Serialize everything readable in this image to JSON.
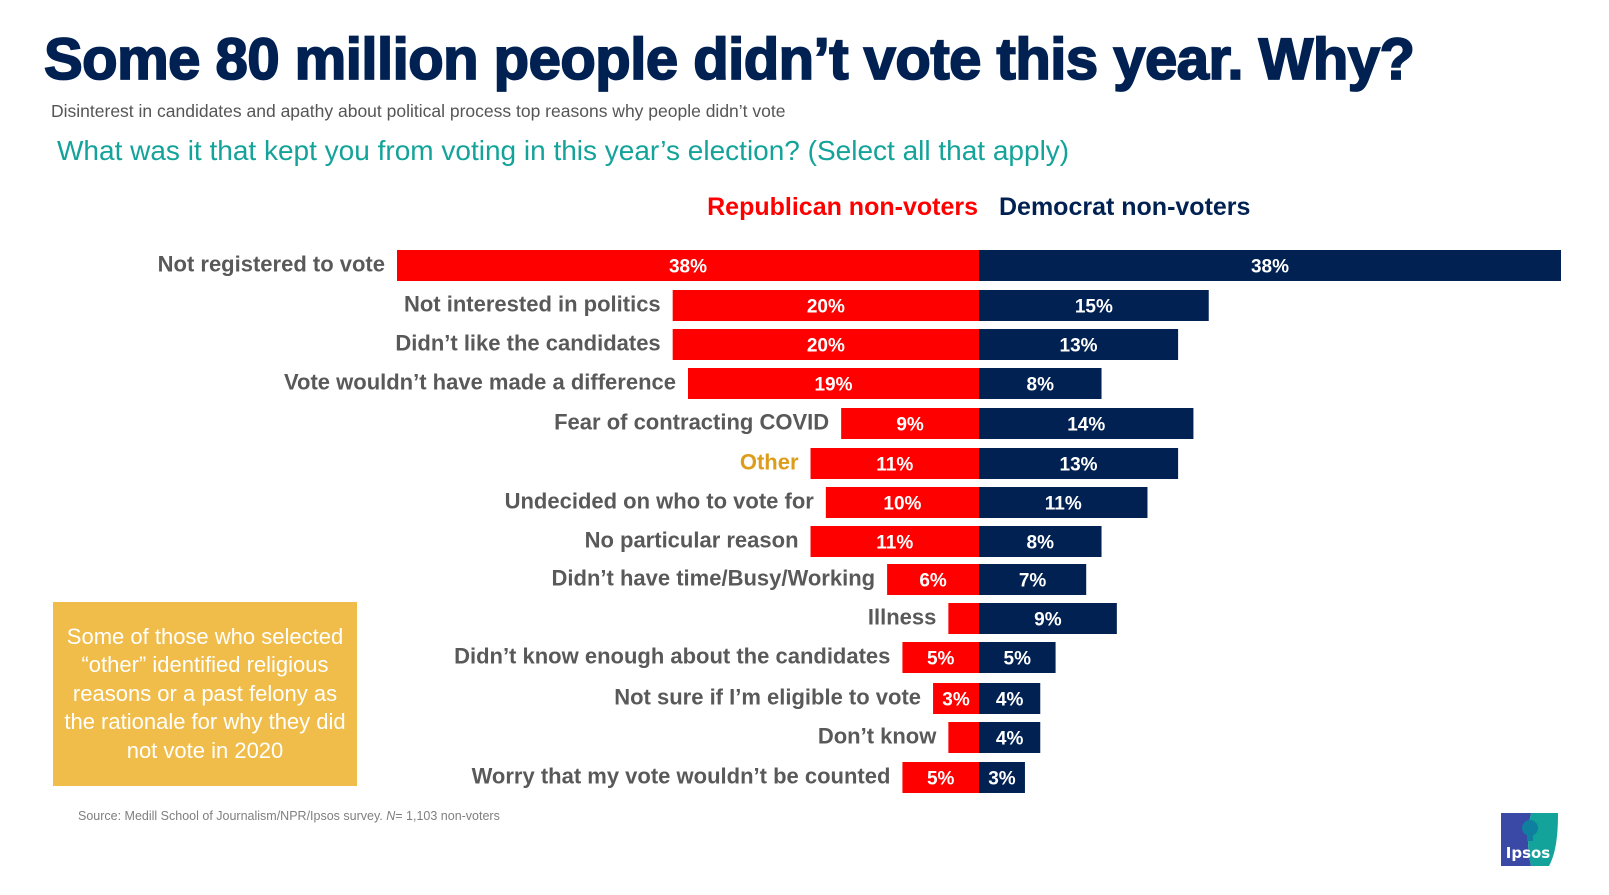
{
  "header": {
    "title": "Some 80 million people didn’t vote this year. Why?",
    "subtitle": "Disinterest in candidates and apathy about political process top reasons why people didn’t vote",
    "question": "What was it that kept you from voting in this year’s election? (Select all that apply)"
  },
  "colors": {
    "republican": "#ff0000",
    "democrat": "#002152",
    "label_default": "#595959",
    "label_highlight": "#dd9d1b",
    "note_bg": "#f0bd4a",
    "question": "#13a39a"
  },
  "chart_data": {
    "type": "bar",
    "orientation": "horizontal-diverging",
    "title": "What was it that kept you from voting in this year’s election? (Select all that apply)",
    "units": "%",
    "xlim": [
      0,
      38
    ],
    "legend": "top",
    "categories": [
      "Not registered to vote",
      "Not interested in politics",
      "Didn’t like the candidates",
      "Vote wouldn’t have made a difference",
      "Fear of contracting COVID",
      "Other",
      "Undecided on who to vote for",
      "No particular reason",
      "Didn’t have time/Busy/Working",
      "Illness",
      "Didn’t know enough about the candidates",
      "Not sure if I’m eligible to vote",
      "Don’t know",
      "Worry that my vote wouldn’t be counted"
    ],
    "highlighted_category": "Other",
    "series": [
      {
        "name": "Republican non-voters",
        "side": "left",
        "values": [
          38,
          20,
          20,
          19,
          9,
          11,
          10,
          11,
          6,
          2,
          5,
          3,
          2,
          5
        ],
        "labels": [
          "38%",
          "20%",
          "20%",
          "19%",
          "9%",
          "11%",
          "10%",
          "11%",
          "6%",
          "",
          "5%",
          "3%",
          "",
          "5%"
        ]
      },
      {
        "name": "Democrat non-voters",
        "side": "right",
        "values": [
          38,
          15,
          13,
          8,
          14,
          13,
          11,
          8,
          7,
          9,
          5,
          4,
          4,
          3
        ],
        "labels": [
          "38%",
          "15%",
          "13%",
          "8%",
          "14%",
          "13%",
          "11%",
          "8%",
          "7%",
          "9%",
          "5%",
          "4%",
          "4%",
          "3%"
        ]
      }
    ]
  },
  "note": {
    "text": "Some of those who selected “other” identified religious reasons or a past felony as the rationale for why they did not vote in 2020"
  },
  "footer": {
    "source_prefix": "Source: Medill School of Journalism/NPR/Ipsos survey. ",
    "n_label": "N",
    "source_suffix": "= 1,103 non-voters"
  },
  "logo": {
    "text": "Ipsos"
  }
}
